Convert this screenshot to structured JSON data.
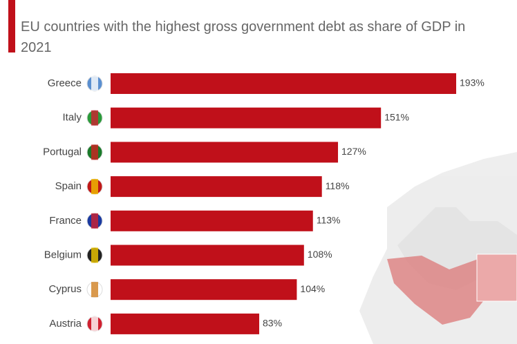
{
  "chart_data": {
    "type": "hbar",
    "subtitle": "EU countries with the highest gross government debt as share of GDP in 2021",
    "categories": [
      "Greece",
      "Italy",
      "Portugal",
      "Spain",
      "France",
      "Belgium",
      "Cyprus",
      "Austria"
    ],
    "values": [
      193,
      151,
      127,
      118,
      113,
      108,
      104,
      83
    ],
    "value_labels": [
      "193%",
      "151%",
      "127%",
      "118%",
      "113%",
      "108%",
      "104%",
      "83%"
    ],
    "color": "#c0101a"
  }
}
